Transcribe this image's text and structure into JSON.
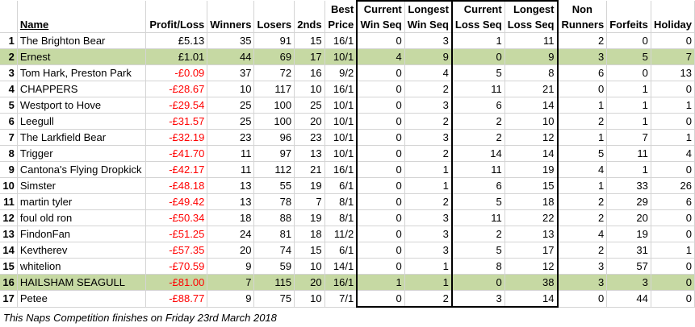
{
  "headers": {
    "top": [
      "",
      "",
      "",
      "",
      "",
      "",
      "Best",
      "Current",
      "Longest",
      "Current",
      "Longest",
      "Non",
      "",
      ""
    ],
    "bottom": [
      "",
      "Name",
      "Profit/Loss",
      "Winners",
      "Losers",
      "2nds",
      "Price",
      "Win Seq",
      "Win Seq",
      "Loss Seq",
      "Loss Seq",
      "Runners",
      "Forfeits",
      "Holiday"
    ]
  },
  "rows": [
    {
      "idx": "1",
      "name": "The Brighton Bear",
      "pl": "£5.13",
      "winners": "35",
      "losers": "91",
      "seconds": "15",
      "best": "16/1",
      "cws": "0",
      "lws": "3",
      "cls": "1",
      "lls": "11",
      "nr": "2",
      "forf": "0",
      "hol": "0",
      "hl": false,
      "neg": false
    },
    {
      "idx": "2",
      "name": "Ernest",
      "pl": "£1.01",
      "winners": "44",
      "losers": "69",
      "seconds": "17",
      "best": "10/1",
      "cws": "4",
      "lws": "9",
      "cls": "0",
      "lls": "9",
      "nr": "3",
      "forf": "5",
      "hol": "7",
      "hl": true,
      "neg": false
    },
    {
      "idx": "3",
      "name": "Tom Hark, Preston Park",
      "pl": "-£0.09",
      "winners": "37",
      "losers": "72",
      "seconds": "16",
      "best": "9/2",
      "cws": "0",
      "lws": "4",
      "cls": "5",
      "lls": "8",
      "nr": "6",
      "forf": "0",
      "hol": "13",
      "hl": false,
      "neg": true
    },
    {
      "idx": "4",
      "name": "CHAPPERS",
      "pl": "-£28.67",
      "winners": "10",
      "losers": "117",
      "seconds": "10",
      "best": "16/1",
      "cws": "0",
      "lws": "2",
      "cls": "11",
      "lls": "21",
      "nr": "0",
      "forf": "1",
      "hol": "0",
      "hl": false,
      "neg": true
    },
    {
      "idx": "5",
      "name": "Westport to Hove",
      "pl": "-£29.54",
      "winners": "25",
      "losers": "100",
      "seconds": "25",
      "best": "10/1",
      "cws": "0",
      "lws": "3",
      "cls": "6",
      "lls": "14",
      "nr": "1",
      "forf": "1",
      "hol": "1",
      "hl": false,
      "neg": true
    },
    {
      "idx": "6",
      "name": "Leegull",
      "pl": "-£31.57",
      "winners": "25",
      "losers": "100",
      "seconds": "20",
      "best": "10/1",
      "cws": "0",
      "lws": "2",
      "cls": "2",
      "lls": "10",
      "nr": "2",
      "forf": "1",
      "hol": "0",
      "hl": false,
      "neg": true
    },
    {
      "idx": "7",
      "name": "The Larkfield Bear",
      "pl": "-£32.19",
      "winners": "23",
      "losers": "96",
      "seconds": "23",
      "best": "10/1",
      "cws": "0",
      "lws": "3",
      "cls": "2",
      "lls": "12",
      "nr": "1",
      "forf": "7",
      "hol": "1",
      "hl": false,
      "neg": true
    },
    {
      "idx": "8",
      "name": "Trigger",
      "pl": "-£41.70",
      "winners": "11",
      "losers": "97",
      "seconds": "13",
      "best": "10/1",
      "cws": "0",
      "lws": "2",
      "cls": "14",
      "lls": "14",
      "nr": "5",
      "forf": "11",
      "hol": "4",
      "hl": false,
      "neg": true
    },
    {
      "idx": "9",
      "name": "Cantona's Flying Dropkick",
      "pl": "-£42.17",
      "winners": "11",
      "losers": "112",
      "seconds": "21",
      "best": "16/1",
      "cws": "0",
      "lws": "1",
      "cls": "11",
      "lls": "19",
      "nr": "4",
      "forf": "1",
      "hol": "0",
      "hl": false,
      "neg": true
    },
    {
      "idx": "10",
      "name": "Simster",
      "pl": "-£48.18",
      "winners": "13",
      "losers": "55",
      "seconds": "19",
      "best": "6/1",
      "cws": "0",
      "lws": "1",
      "cls": "6",
      "lls": "15",
      "nr": "1",
      "forf": "33",
      "hol": "26",
      "hl": false,
      "neg": true
    },
    {
      "idx": "11",
      "name": "martin tyler",
      "pl": "-£49.42",
      "winners": "13",
      "losers": "78",
      "seconds": "7",
      "best": "8/1",
      "cws": "0",
      "lws": "2",
      "cls": "5",
      "lls": "18",
      "nr": "2",
      "forf": "29",
      "hol": "6",
      "hl": false,
      "neg": true
    },
    {
      "idx": "12",
      "name": "foul old ron",
      "pl": "-£50.34",
      "winners": "18",
      "losers": "88",
      "seconds": "19",
      "best": "8/1",
      "cws": "0",
      "lws": "3",
      "cls": "11",
      "lls": "22",
      "nr": "2",
      "forf": "20",
      "hol": "0",
      "hl": false,
      "neg": true
    },
    {
      "idx": "13",
      "name": "FindonFan",
      "pl": "-£51.25",
      "winners": "24",
      "losers": "81",
      "seconds": "18",
      "best": "11/2",
      "cws": "0",
      "lws": "3",
      "cls": "2",
      "lls": "13",
      "nr": "4",
      "forf": "19",
      "hol": "0",
      "hl": false,
      "neg": true
    },
    {
      "idx": "14",
      "name": "Kevtherev",
      "pl": "-£57.35",
      "winners": "20",
      "losers": "74",
      "seconds": "15",
      "best": "6/1",
      "cws": "0",
      "lws": "3",
      "cls": "5",
      "lls": "17",
      "nr": "2",
      "forf": "31",
      "hol": "1",
      "hl": false,
      "neg": true
    },
    {
      "idx": "15",
      "name": "whitelion",
      "pl": "-£70.59",
      "winners": "9",
      "losers": "59",
      "seconds": "10",
      "best": "14/1",
      "cws": "0",
      "lws": "1",
      "cls": "8",
      "lls": "12",
      "nr": "3",
      "forf": "57",
      "hol": "0",
      "hl": false,
      "neg": true
    },
    {
      "idx": "16",
      "name": "HAILSHAM SEAGULL",
      "pl": "-£81.00",
      "winners": "7",
      "losers": "115",
      "seconds": "20",
      "best": "16/1",
      "cws": "1",
      "lws": "1",
      "cls": "0",
      "lls": "38",
      "nr": "3",
      "forf": "3",
      "hol": "0",
      "hl": true,
      "neg": true
    },
    {
      "idx": "17",
      "name": "Petee",
      "pl": "-£88.77",
      "winners": "9",
      "losers": "75",
      "seconds": "10",
      "best": "7/1",
      "cws": "0",
      "lws": "2",
      "cls": "3",
      "lls": "14",
      "nr": "0",
      "forf": "44",
      "hol": "0",
      "hl": false,
      "neg": true
    }
  ],
  "footer": "This Naps Competition finishes on Friday 23rd March 2018"
}
